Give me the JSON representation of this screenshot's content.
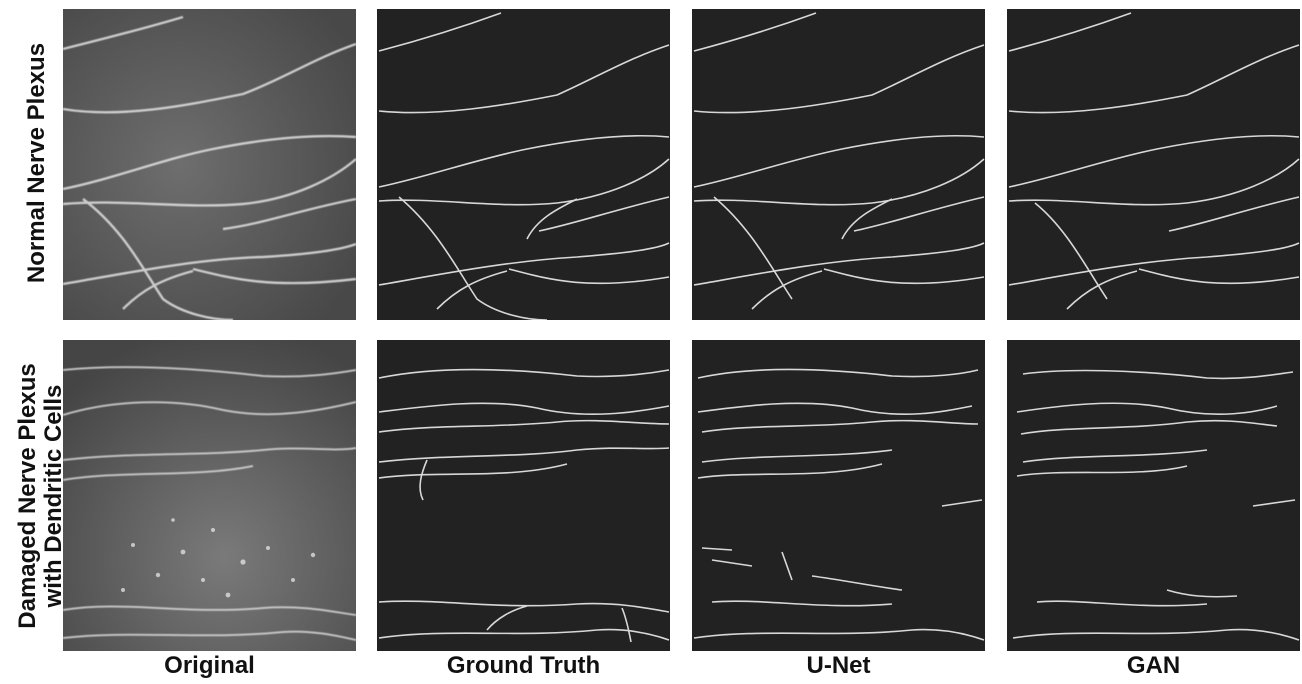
{
  "rows": [
    {
      "label": "Normal Nerve Plexus"
    },
    {
      "label_line1": "Damaged Nerve Plexus",
      "label_line2": "with Dendritic Cells"
    }
  ],
  "columns": [
    {
      "label": "Original"
    },
    {
      "label": "Ground Truth"
    },
    {
      "label": "U-Net"
    },
    {
      "label": "GAN"
    }
  ],
  "colors": {
    "background_panel": "#222222",
    "nerve_trace": "#d8d8d8",
    "original_image": "#5e5e5e"
  }
}
